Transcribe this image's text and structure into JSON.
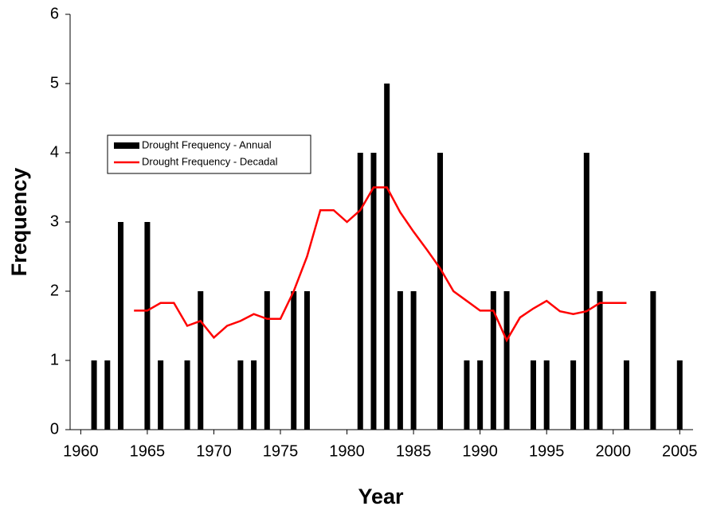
{
  "chart_data": {
    "type": "combo",
    "x_label": "Year",
    "y_label": "Frequency",
    "xlim": [
      1959.2,
      2006
    ],
    "ylim": [
      0,
      6
    ],
    "xticks": [
      1960,
      1965,
      1970,
      1975,
      1980,
      1985,
      1990,
      1995,
      2000,
      2005
    ],
    "yticks": [
      0,
      1,
      2,
      3,
      4,
      5,
      6
    ],
    "legend": "upper-left",
    "series": [
      {
        "name": "Drought Frequency - Annual",
        "type": "bar",
        "color": "#000000",
        "x": [
          1961,
          1962,
          1963,
          1965,
          1966,
          1968,
          1969,
          1972,
          1973,
          1974,
          1976,
          1977,
          1981,
          1982,
          1983,
          1984,
          1985,
          1987,
          1989,
          1990,
          1991,
          1992,
          1994,
          1995,
          1997,
          1998,
          1999,
          2001,
          2003,
          2005
        ],
        "values": [
          1,
          1,
          3,
          3,
          1,
          1,
          2,
          1,
          1,
          2,
          2,
          2,
          4,
          4,
          5,
          2,
          2,
          4,
          1,
          1,
          2,
          2,
          1,
          1,
          1,
          4,
          2,
          1,
          2,
          1
        ]
      },
      {
        "name": "Drought Frequency - Decadal",
        "type": "line",
        "color": "#ff0000",
        "x": [
          1964,
          1965,
          1966,
          1967,
          1968,
          1969,
          1970,
          1971,
          1972,
          1973,
          1974,
          1975,
          1976,
          1977,
          1978,
          1979,
          1980,
          1981,
          1982,
          1983,
          1984,
          1985,
          1986,
          1987,
          1988,
          1989,
          1990,
          1991,
          1992,
          1993,
          1994,
          1995,
          1996,
          1997,
          1998,
          1999,
          2000,
          2001
        ],
        "values": [
          1.72,
          1.72,
          1.83,
          1.83,
          1.5,
          1.57,
          1.33,
          1.5,
          1.57,
          1.67,
          1.6,
          1.6,
          2.0,
          2.5,
          3.17,
          3.17,
          3.0,
          3.17,
          3.5,
          3.5,
          3.14,
          2.86,
          2.6,
          2.33,
          2.0,
          1.86,
          1.72,
          1.72,
          1.29,
          1.62,
          1.75,
          1.86,
          1.71,
          1.67,
          1.71,
          1.83,
          1.83,
          1.83
        ]
      }
    ]
  }
}
